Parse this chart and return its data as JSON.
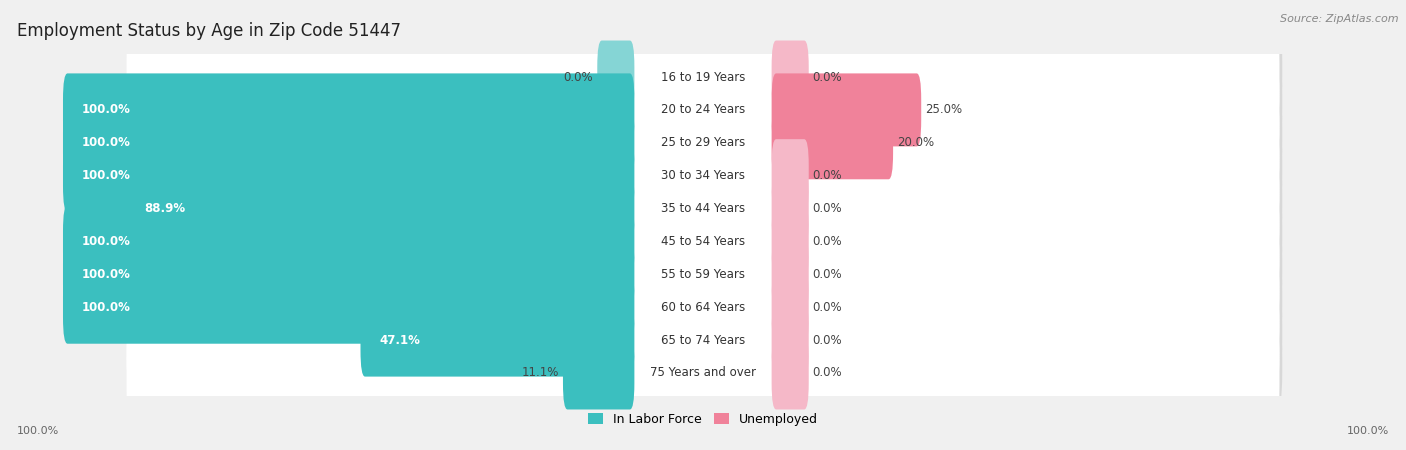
{
  "title": "Employment Status by Age in Zip Code 51447",
  "source": "Source: ZipAtlas.com",
  "categories": [
    "16 to 19 Years",
    "20 to 24 Years",
    "25 to 29 Years",
    "30 to 34 Years",
    "35 to 44 Years",
    "45 to 54 Years",
    "55 to 59 Years",
    "60 to 64 Years",
    "65 to 74 Years",
    "75 Years and over"
  ],
  "labor_force": [
    0.0,
    100.0,
    100.0,
    100.0,
    88.9,
    100.0,
    100.0,
    100.0,
    47.1,
    11.1
  ],
  "unemployed": [
    0.0,
    25.0,
    20.0,
    0.0,
    0.0,
    0.0,
    0.0,
    0.0,
    0.0,
    0.0
  ],
  "labor_force_color": "#3BBFBF",
  "labor_force_color_light": "#85D5D5",
  "unemployed_color": "#F0829A",
  "unemployed_color_light": "#F5B8C8",
  "bg_color": "#f0f0f0",
  "row_bg_color": "#ffffff",
  "row_shadow_color": "#d8d8d8",
  "title_fontsize": 12,
  "source_fontsize": 8,
  "bar_label_fontsize": 8.5,
  "cat_label_fontsize": 8.5,
  "legend_fontsize": 9
}
